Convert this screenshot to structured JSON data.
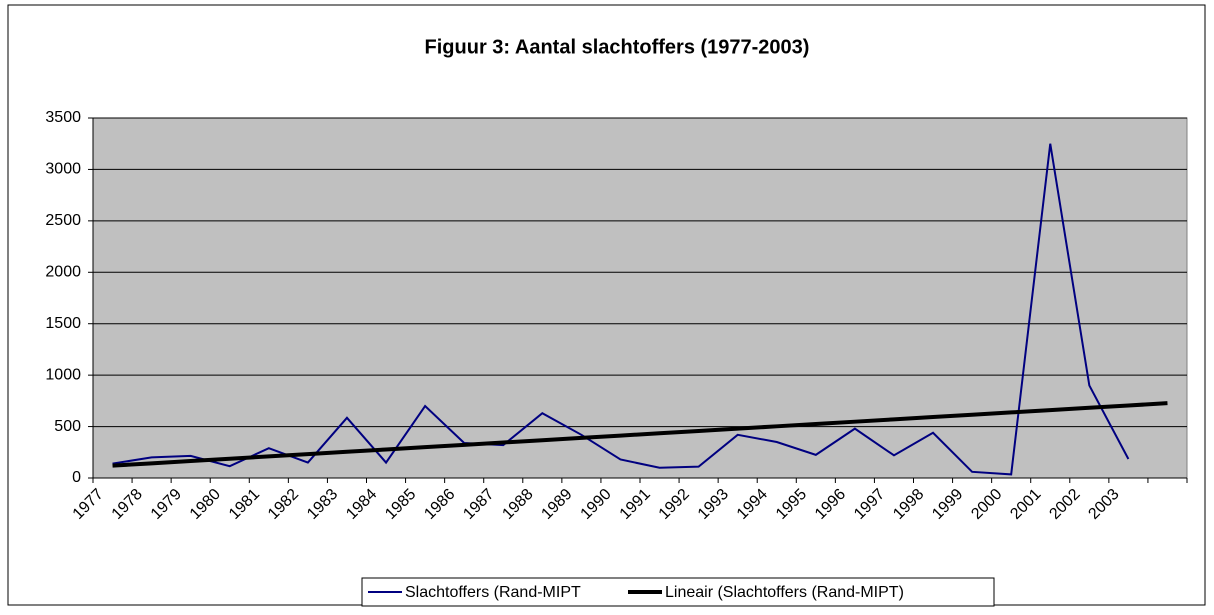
{
  "chart_data": {
    "type": "line",
    "title": "Figuur 3:  Aantal slachtoffers (1977-2003)",
    "categories": [
      "1977",
      "1978",
      "1979",
      "1980",
      "1981",
      "1982",
      "1983",
      "1984",
      "1985",
      "1986",
      "1987",
      "1988",
      "1989",
      "1990",
      "1991",
      "1992",
      "1993",
      "1994",
      "1995",
      "1996",
      "1997",
      "1998",
      "1999",
      "2000",
      "2001",
      "2002",
      "2003",
      null
    ],
    "series": [
      {
        "name": "Slachtoffers (Rand-MIPT",
        "color": "#000080",
        "values": [
          140,
          200,
          215,
          115,
          290,
          150,
          585,
          150,
          700,
          340,
          320,
          630,
          420,
          180,
          100,
          110,
          420,
          350,
          225,
          480,
          220,
          440,
          60,
          35,
          3250,
          900,
          185,
          null
        ]
      },
      {
        "name": "Lineair (Slachtoffers (Rand-MIPT)",
        "color": "#000000",
        "values": [
          120,
          142.5,
          165,
          187.5,
          210,
          232.5,
          255,
          277.5,
          300,
          322.5,
          345,
          367.5,
          390,
          412.5,
          435,
          457.5,
          480,
          502.5,
          525,
          547.5,
          570,
          592.5,
          615,
          637.5,
          660,
          682.5,
          705,
          727.5
        ]
      }
    ],
    "ylim": [
      0,
      3500
    ],
    "yticks": [
      0,
      500,
      1000,
      1500,
      2000,
      2500,
      3000,
      3500
    ],
    "grid": true
  }
}
